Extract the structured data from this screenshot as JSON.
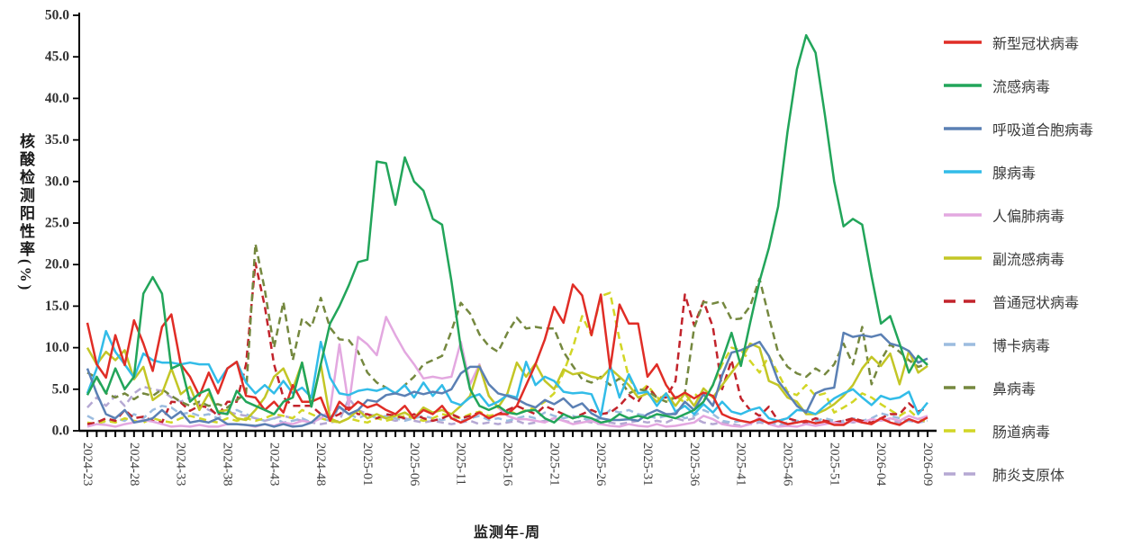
{
  "chart_data": {
    "type": "line",
    "title": "",
    "xlabel": "监测年-周",
    "ylabel": "核酸检测阳性率(%)",
    "ylim": [
      0,
      50
    ],
    "ytick_step": 5,
    "ytick_labels": [
      "0.0",
      "5.0",
      "10.0",
      "15.0",
      "20.0",
      "25.0",
      "30.0",
      "35.0",
      "40.0",
      "45.0",
      "50.0"
    ],
    "xtick_shown_labels": [
      "2024-23",
      "2024-28",
      "2024-33",
      "2024-38",
      "2024-43",
      "2024-48",
      "2025-01",
      "2025-06",
      "2025-11",
      "2025-16",
      "2025-21",
      "2025-26",
      "2025-31",
      "2025-36",
      "2025-41",
      "2025-46",
      "2025-51",
      "2026-04",
      "2026-09"
    ],
    "x_major_tick_every": 5,
    "grid": false,
    "legend_position": "right",
    "categories": [
      "2024-23",
      "2024-24",
      "2024-25",
      "2024-26",
      "2024-27",
      "2024-28",
      "2024-29",
      "2024-30",
      "2024-31",
      "2024-32",
      "2024-33",
      "2024-34",
      "2024-35",
      "2024-36",
      "2024-37",
      "2024-38",
      "2024-39",
      "2024-40",
      "2024-41",
      "2024-42",
      "2024-43",
      "2024-44",
      "2024-45",
      "2024-46",
      "2024-47",
      "2024-48",
      "2024-49",
      "2024-50",
      "2024-51",
      "2024-52",
      "2025-01",
      "2025-02",
      "2025-03",
      "2025-04",
      "2025-05",
      "2025-06",
      "2025-07",
      "2025-08",
      "2025-09",
      "2025-10",
      "2025-11",
      "2025-12",
      "2025-13",
      "2025-14",
      "2025-15",
      "2025-16",
      "2025-17",
      "2025-18",
      "2025-19",
      "2025-20",
      "2025-21",
      "2025-22",
      "2025-23",
      "2025-24",
      "2025-25",
      "2025-26",
      "2025-27",
      "2025-28",
      "2025-29",
      "2025-30",
      "2025-31",
      "2025-32",
      "2025-33",
      "2025-34",
      "2025-35",
      "2025-36",
      "2025-37",
      "2025-38",
      "2025-39",
      "2025-40",
      "2025-41",
      "2025-42",
      "2025-43",
      "2025-44",
      "2025-45",
      "2025-46",
      "2025-47",
      "2025-48",
      "2025-49",
      "2025-50",
      "2025-51",
      "2025-52",
      "2026-01",
      "2026-02",
      "2026-03",
      "2026-04",
      "2026-05",
      "2026-06",
      "2026-07",
      "2026-08",
      "2026-09"
    ],
    "series": [
      {
        "name": "新型冠状病毒",
        "color": "#e02d26",
        "line": "solid",
        "values": [
          13,
          8,
          6.4,
          11.5,
          7.9,
          13.3,
          10.5,
          7.2,
          12.5,
          14,
          8,
          6.5,
          4.2,
          7,
          4.5,
          7.5,
          8.3,
          4.2,
          4,
          2.5,
          3.5,
          2.2,
          5.5,
          3.5,
          3.5,
          4,
          1.2,
          3.5,
          2.5,
          3.5,
          2.8,
          3.2,
          2.5,
          2,
          3,
          1.5,
          2.5,
          2,
          3,
          1.5,
          1,
          1.5,
          2.2,
          1.5,
          2,
          2,
          3,
          5.5,
          8,
          11,
          14.9,
          13,
          17.6,
          16.3,
          11.5,
          16.4,
          7.5,
          15.2,
          12.9,
          12.9,
          6.5,
          8,
          5.5,
          3.9,
          4.6,
          3.9,
          4.6,
          4.2,
          2,
          1.5,
          1.2,
          1,
          1.4,
          0.9,
          1.2,
          0.8,
          1,
          1.2,
          0.9,
          1.1,
          0.7,
          0.7,
          1.4,
          1,
          0.8,
          1.5,
          1,
          0.7,
          1.4,
          1,
          1.6
        ]
      },
      {
        "name": "流感病毒",
        "color": "#22a55a",
        "line": "solid",
        "values": [
          4.3,
          6.5,
          4.5,
          7.5,
          5,
          6.5,
          16.5,
          18.5,
          16.5,
          7.5,
          8,
          3.5,
          4.5,
          5,
          2.2,
          2,
          4.8,
          3.5,
          3,
          2.5,
          2,
          3.5,
          4,
          8.2,
          2.9,
          8,
          12.9,
          15,
          17.5,
          20.3,
          20.6,
          32.4,
          32.2,
          27.2,
          32.9,
          30,
          28.9,
          25.5,
          24.8,
          18,
          10,
          5,
          3,
          2.5,
          3,
          2.2,
          2,
          2.4,
          2.5,
          1.5,
          1,
          2,
          1.5,
          1.8,
          1.5,
          1,
          1.2,
          2,
          1.5,
          1.8,
          1.5,
          2,
          1.8,
          1.5,
          2,
          2.5,
          3.5,
          5.5,
          8.5,
          11.8,
          7.8,
          13,
          18,
          22,
          27,
          36,
          43.5,
          47.6,
          45.5,
          38,
          30,
          24.6,
          25.5,
          24.8,
          18.6,
          12.9,
          13.8,
          10.5,
          7,
          9,
          7.9
        ]
      },
      {
        "name": "呼吸道合胞病毒",
        "color": "#5b80b4",
        "line": "solid",
        "values": [
          7.5,
          4.5,
          2,
          1.5,
          2.5,
          1,
          1.2,
          1.5,
          2.5,
          1.5,
          2.3,
          1,
          1.2,
          1,
          1.5,
          0.8,
          0.8,
          0.7,
          0.6,
          0.8,
          0.5,
          0.8,
          0.5,
          0.6,
          1,
          2,
          1.5,
          2.9,
          2,
          2.5,
          3.7,
          3.5,
          4.3,
          4.5,
          4.2,
          4.7,
          4.4,
          4.7,
          4.5,
          5,
          6.9,
          7.7,
          7.7,
          5.6,
          4.5,
          4.2,
          3.8,
          3.2,
          2.8,
          3.7,
          3.2,
          3.9,
          2.8,
          3.3,
          2.1,
          1.5,
          1.3,
          1.3,
          1.4,
          1.2,
          2,
          2.5,
          2,
          2,
          3.5,
          2.5,
          4.4,
          3,
          6.7,
          9.4,
          9.7,
          10.2,
          10.7,
          9,
          6,
          4.5,
          3,
          2.2,
          4.5,
          5,
          5.2,
          11.8,
          11.3,
          11.5,
          11.3,
          11.6,
          10.5,
          10.2,
          9.6,
          8.2,
          8.7
        ]
      },
      {
        "name": "腺病毒",
        "color": "#32bce8",
        "line": "solid",
        "values": [
          4.5,
          7.5,
          12,
          9.5,
          8,
          6.4,
          9.3,
          8.5,
          8.2,
          8.2,
          8,
          8.2,
          8,
          8,
          5.8,
          7.5,
          8.3,
          5.8,
          4.5,
          5.5,
          4.5,
          6,
          4.5,
          5.2,
          4,
          10.7,
          6.4,
          4.5,
          4.3,
          4.8,
          5,
          4.8,
          5.2,
          4.5,
          5.5,
          4,
          5.8,
          4.2,
          5.5,
          3.5,
          3.1,
          4,
          4.4,
          3,
          3.5,
          4.3,
          4,
          8.3,
          5.5,
          6.5,
          6,
          4.7,
          4.5,
          4.6,
          4.4,
          1.8,
          7.9,
          4,
          6.8,
          4.5,
          4.7,
          3,
          4.5,
          2.3,
          3,
          2,
          3.2,
          2.2,
          3.5,
          2.3,
          2,
          2.5,
          2.8,
          1.5,
          1.2,
          1.5,
          2.5,
          2.4,
          2,
          3,
          3.9,
          4.5,
          5,
          4,
          3.1,
          4.2,
          3.8,
          4,
          4.7,
          2,
          3.4
        ]
      },
      {
        "name": "人偏肺病毒",
        "color": "#e3a8e0",
        "line": "solid",
        "values": [
          0.5,
          0.8,
          0.7,
          0.5,
          0.8,
          1,
          1.3,
          1.1,
          0.8,
          0.5,
          0.6,
          0.5,
          0.7,
          0.5,
          0.5,
          0.8,
          0.8,
          0.7,
          0.5,
          0.8,
          0.6,
          1,
          0.8,
          1.2,
          1,
          1.5,
          2.5,
          10.4,
          3,
          11.3,
          10.4,
          9.1,
          13.7,
          11.5,
          9.5,
          8,
          6.3,
          6.5,
          6.3,
          6.5,
          10.7,
          5.6,
          8,
          4.2,
          2.8,
          1.8,
          1.4,
          1.4,
          1.2,
          1,
          1.5,
          1.2,
          0.8,
          1,
          1.2,
          0.8,
          0.6,
          0.5,
          0.8,
          0.6,
          0.5,
          0.8,
          0.5,
          0.6,
          0.8,
          1,
          1.8,
          1.4,
          0.8,
          0.6,
          0.5,
          0.8,
          1.6,
          0.8,
          0.5,
          0.6,
          0.5,
          0.8,
          0.6,
          0.8,
          1,
          0.8,
          1.2,
          1,
          1.4,
          1.2,
          1.5,
          1.2,
          1.8,
          1.4,
          1.8
        ]
      },
      {
        "name": "副流感病毒",
        "color": "#c3c626",
        "line": "solid",
        "values": [
          10,
          8,
          9.5,
          8.5,
          9.7,
          6.2,
          7.7,
          3.7,
          4.5,
          7.5,
          4.4,
          5.3,
          2.5,
          4.5,
          2.3,
          2.5,
          1.5,
          1.3,
          2.5,
          4,
          6.5,
          7.5,
          5,
          8.2,
          3,
          8,
          1.5,
          1,
          1.5,
          2.5,
          1.5,
          2,
          1.5,
          1.8,
          2.2,
          1.5,
          2.8,
          2.2,
          2.5,
          2,
          3,
          4.2,
          7.8,
          4.2,
          2.8,
          4.5,
          8.2,
          6.5,
          8.1,
          6,
          5,
          7.4,
          6.8,
          7,
          6.5,
          6.3,
          7.5,
          6.5,
          5.5,
          4,
          4.5,
          3.5,
          4.5,
          3,
          4.5,
          3,
          5.1,
          4,
          5.5,
          7,
          8.5,
          10.5,
          10,
          6,
          5.5,
          4,
          3.5,
          2,
          2,
          2.5,
          3.2,
          4.2,
          5.5,
          7.5,
          8.9,
          7.8,
          9.3,
          5.6,
          9.6,
          7,
          7.8
        ]
      },
      {
        "name": "普通冠状病毒",
        "color": "#c2232b",
        "line": "dashed",
        "values": [
          0.8,
          1,
          1.5,
          1.2,
          2.5,
          1.5,
          1.7,
          1.2,
          1,
          3.5,
          3.4,
          2.4,
          3,
          2.8,
          1.8,
          3.5,
          3.5,
          8,
          20.2,
          15,
          8,
          4,
          3,
          3,
          3,
          2,
          1.5,
          2,
          2.9,
          2,
          2,
          1.5,
          2,
          1.8,
          1.5,
          2,
          1.5,
          1.2,
          1.5,
          2,
          1.5,
          1.8,
          2.2,
          1.5,
          2,
          2.5,
          3,
          2.5,
          2,
          3,
          2.5,
          2,
          1.5,
          2,
          2.5,
          2,
          2.2,
          3,
          4.3,
          3.5,
          5.3,
          4,
          4,
          6,
          16.4,
          12.7,
          15.6,
          12.5,
          5,
          8.5,
          3.9,
          2.5,
          1.8,
          2.9,
          1.2,
          1.5,
          1.2,
          1,
          1.5,
          1.2,
          1,
          1.2,
          1.5,
          1.2,
          1,
          1.5,
          2,
          2,
          3.3,
          2.3,
          2.8
        ]
      },
      {
        "name": "博卡病毒",
        "color": "#9cbcdf",
        "line": "dashed",
        "values": [
          1.8,
          1.2,
          1,
          1.5,
          1.2,
          2,
          1.5,
          2.5,
          3,
          2.8,
          2,
          2.2,
          1.8,
          2,
          1.5,
          2.2,
          2.5,
          2,
          1.5,
          1.2,
          1.5,
          1,
          1.2,
          1.5,
          1,
          1.5,
          1.2,
          2.8,
          2,
          1.5,
          2,
          1.5,
          1.8,
          1.5,
          1.2,
          1.5,
          1.8,
          1.5,
          1.3,
          1.5,
          1.2,
          1.5,
          1.8,
          1.3,
          1.5,
          1.2,
          1.5,
          1.8,
          1.5,
          2.2,
          1.8,
          1.5,
          1.8,
          1.5,
          1.2,
          1.5,
          2.5,
          2.2,
          2.5,
          2,
          1.8,
          1.5,
          1.8,
          2.2,
          1.5,
          1.8,
          2.5,
          2,
          1.2,
          1,
          1.2,
          1,
          1.2,
          1,
          0.8,
          1,
          1.2,
          1,
          1.2,
          1.5,
          1.2,
          1,
          1.5,
          1.2,
          1.5,
          2.1,
          1.8,
          1.5,
          1.2,
          1,
          1.2
        ]
      },
      {
        "name": "鼻病毒",
        "color": "#75883f",
        "line": "dashed",
        "values": [
          7,
          6.4,
          4.5,
          4,
          4.5,
          3.8,
          4.5,
          4.2,
          5,
          4.2,
          3.5,
          3,
          3.5,
          3,
          3.2,
          2.8,
          3.7,
          4.5,
          22.5,
          17,
          10,
          15.5,
          8.5,
          13.5,
          12.5,
          16,
          12.4,
          11,
          10.9,
          9.5,
          7,
          5.8,
          5.2,
          4.5,
          5.5,
          6.5,
          8,
          8.5,
          9,
          12,
          15.4,
          14.1,
          11.6,
          10.2,
          9.5,
          11.8,
          13.6,
          12.3,
          12.5,
          12.3,
          12.3,
          9.5,
          7.8,
          6.2,
          5.8,
          6.5,
          5.5,
          6.3,
          4.5,
          5,
          4.8,
          4,
          3.5,
          4,
          4.5,
          12.4,
          15.5,
          15.3,
          15.6,
          13.4,
          13.5,
          15,
          18.3,
          13.7,
          9.4,
          7.7,
          6.9,
          6.5,
          7.5,
          6.8,
          8,
          10.5,
          8,
          12.5,
          5.6,
          8.5,
          10.4,
          9.5,
          8.5,
          7.7,
          8.1
        ]
      },
      {
        "name": "肠道病毒",
        "color": "#d2d626",
        "line": "dashed",
        "values": [
          1,
          0.8,
          1.2,
          1,
          1.5,
          1.2,
          1,
          1.5,
          1.2,
          1,
          1.5,
          1.8,
          1.5,
          1.2,
          1,
          1.5,
          1.2,
          1.5,
          1.2,
          1.5,
          2,
          1.8,
          1.5,
          2.5,
          2,
          1.5,
          1.2,
          1,
          1.5,
          1.2,
          1,
          1.5,
          1.2,
          1.5,
          1.8,
          1.5,
          1.2,
          1.5,
          2,
          1.8,
          1.5,
          2,
          2.3,
          1.8,
          2,
          2.5,
          2,
          2.5,
          2.8,
          3.5,
          4.5,
          7,
          10,
          13.8,
          11.5,
          16.2,
          16.6,
          11,
          6.4,
          4.5,
          5.5,
          4,
          3.5,
          4.2,
          3.4,
          4.5,
          3.6,
          5.5,
          8,
          10,
          9.7,
          8.4,
          7,
          9,
          6.9,
          4.7,
          4.3,
          5.5,
          4.2,
          4.5,
          2.2,
          2.8,
          3.5,
          4.5,
          4,
          3.2,
          2.5,
          1.8,
          2.5,
          1.5,
          1
        ]
      },
      {
        "name": "肺炎支原体",
        "color": "#b5a8d3",
        "line": "dashed",
        "values": [
          2.8,
          4,
          3,
          4.2,
          3,
          4.5,
          5.3,
          5,
          4.8,
          4,
          3.5,
          4,
          3.2,
          2.5,
          2,
          2.3,
          2,
          1.8,
          1.5,
          1.2,
          1.5,
          1.8,
          1.5,
          1.2,
          1,
          0.8,
          1,
          1.2,
          3.9,
          2.5,
          2,
          1.8,
          1.5,
          1.2,
          1.5,
          1.2,
          1,
          1.2,
          1,
          0.8,
          1,
          1.2,
          0.8,
          1,
          0.8,
          1,
          1.2,
          0.8,
          1,
          1.2,
          1.5,
          1.2,
          1,
          1.2,
          1,
          0.8,
          1,
          0.8,
          1,
          1.2,
          1,
          1.2,
          1,
          1.5,
          1.2,
          1.5,
          1,
          0.8,
          1,
          0.8,
          0.6,
          0.8,
          1,
          0.8,
          0.6,
          0.8,
          1,
          0.8,
          1,
          1.2,
          1,
          1.2,
          1,
          1.2,
          1,
          1.3,
          1.2,
          1,
          1.2,
          1,
          1.2
        ]
      }
    ]
  }
}
